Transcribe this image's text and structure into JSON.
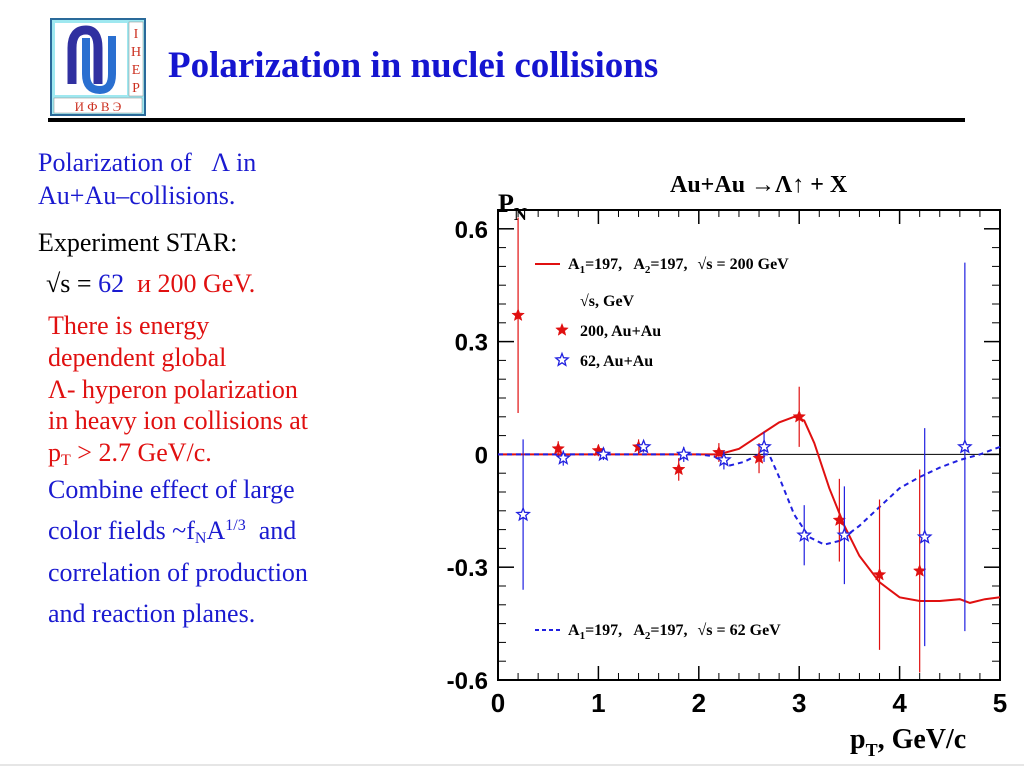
{
  "header": {
    "title": "Polarization in nuclei collisions",
    "logo": {
      "letters_vertical": [
        "I",
        "H",
        "E",
        "P"
      ],
      "letters_bottom": "И Ф В Э"
    }
  },
  "left_text": {
    "line1_prefix": "Polarization of",
    "line1_lambda": "Λ",
    "line1_suffix": "in",
    "line2": "Au+Au–collisions.",
    "experiment": "Experiment STAR:",
    "energy_prefix": "√s =",
    "energy_62": "62",
    "energy_and": "и 200 GeV.",
    "red_1": "There is energy",
    "red_2": "dependent global",
    "red_3": "Λ- hyperon polarization",
    "red_4": "in heavy ion collisions at",
    "red_5_p": "p",
    "red_5_sub": "T",
    "red_5_rest": " > 2.7 GeV/c.",
    "blue_1": "Combine effect of large",
    "blue_2_pre": "color fields ~f",
    "blue_2_sub": "N",
    "blue_2_A": "A",
    "blue_2_sup": "1/3",
    "blue_2_post": "  and",
    "blue_3": "correlation of production",
    "blue_4": "and reaction planes."
  },
  "chart_data": {
    "type": "scatter",
    "title": "Au+Au →Λ↑ + X",
    "ylabel_main": "P",
    "ylabel_sub": "N",
    "xlabel_main": "p",
    "xlabel_sub": "T",
    "xlabel_rest": ", GeV/c",
    "xlim": [
      0,
      5
    ],
    "ylim": [
      -0.6,
      0.65
    ],
    "xticks": [
      0,
      1,
      2,
      3,
      4,
      5
    ],
    "xtick_labels": [
      "0",
      "1",
      "2",
      "3",
      "4",
      "5"
    ],
    "yticks": [
      0.6,
      0.3,
      0,
      -0.3,
      -0.6
    ],
    "ytick_labels": [
      "0.6",
      "0.3",
      "0",
      "-0.3",
      "-0.6"
    ],
    "zero_line": true,
    "colors": {
      "red": "#e01010",
      "blue": "#2020e0"
    },
    "legend": {
      "curve_200": {
        "A1": "A",
        "A1_sub": "1",
        "A1_val": "=197,",
        "A2": "A",
        "A2_sub": "2",
        "A2_val": "=197,",
        "rest": "√s = 200 GeV"
      },
      "header": "√s, GeV",
      "item_200": "200, Au+Au",
      "item_62": "62, Au+Au",
      "curve_62": {
        "A1": "A",
        "A1_sub": "1",
        "A1_val": "=197,",
        "A2": "A",
        "A2_sub": "2",
        "A2_val": "=197,",
        "rest": "√s = 62 GeV"
      }
    },
    "series": [
      {
        "name": "200, Au+Au",
        "marker": "filled-star",
        "color": "#e01010",
        "points": [
          {
            "x": 0.2,
            "y": 0.37,
            "err": 0.26
          },
          {
            "x": 0.6,
            "y": 0.015,
            "err": 0.02
          },
          {
            "x": 1.0,
            "y": 0.01,
            "err": 0.015
          },
          {
            "x": 1.4,
            "y": 0.02,
            "err": 0.02
          },
          {
            "x": 1.8,
            "y": -0.04,
            "err": 0.03
          },
          {
            "x": 2.2,
            "y": 0.005,
            "err": 0.025
          },
          {
            "x": 2.6,
            "y": -0.01,
            "err": 0.04
          },
          {
            "x": 3.0,
            "y": 0.1,
            "err": 0.08
          },
          {
            "x": 3.4,
            "y": -0.175,
            "err": 0.11
          },
          {
            "x": 3.8,
            "y": -0.32,
            "err": 0.2
          },
          {
            "x": 4.2,
            "y": -0.31,
            "err": 0.27
          }
        ]
      },
      {
        "name": "62, Au+Au",
        "marker": "open-star",
        "color": "#2020e0",
        "points": [
          {
            "x": 0.25,
            "y": -0.16,
            "err": 0.2
          },
          {
            "x": 0.65,
            "y": -0.01,
            "err": 0.02
          },
          {
            "x": 1.05,
            "y": 0.0,
            "err": 0.015
          },
          {
            "x": 1.45,
            "y": 0.02,
            "err": 0.015
          },
          {
            "x": 1.85,
            "y": 0.0,
            "err": 0.02
          },
          {
            "x": 2.25,
            "y": -0.015,
            "err": 0.025
          },
          {
            "x": 2.65,
            "y": 0.02,
            "err": 0.04
          },
          {
            "x": 3.05,
            "y": -0.215,
            "err": 0.08
          },
          {
            "x": 3.45,
            "y": -0.215,
            "err": 0.13
          },
          {
            "x": 4.25,
            "y": -0.22,
            "err": 0.29
          },
          {
            "x": 4.65,
            "y": 0.02,
            "err": 0.49
          }
        ]
      }
    ],
    "curves": [
      {
        "name": "√s = 200 GeV",
        "style": "solid",
        "color": "#e01010",
        "points": [
          [
            0,
            0
          ],
          [
            1,
            0
          ],
          [
            2,
            0
          ],
          [
            2.2,
            0.0
          ],
          [
            2.4,
            0.015
          ],
          [
            2.6,
            0.05
          ],
          [
            2.8,
            0.085
          ],
          [
            2.95,
            0.1
          ],
          [
            3.05,
            0.09
          ],
          [
            3.15,
            0.03
          ],
          [
            3.3,
            -0.09
          ],
          [
            3.45,
            -0.19
          ],
          [
            3.6,
            -0.27
          ],
          [
            3.8,
            -0.34
          ],
          [
            4.0,
            -0.38
          ],
          [
            4.2,
            -0.39
          ],
          [
            4.4,
            -0.39
          ],
          [
            4.6,
            -0.385
          ],
          [
            4.7,
            -0.395
          ],
          [
            4.85,
            -0.385
          ],
          [
            5.0,
            -0.38
          ]
        ]
      },
      {
        "name": "√s = 62 GeV",
        "style": "dashed",
        "color": "#2020e0",
        "points": [
          [
            0,
            0
          ],
          [
            1,
            0
          ],
          [
            2,
            0
          ],
          [
            2.15,
            -0.005
          ],
          [
            2.3,
            -0.03
          ],
          [
            2.45,
            -0.02
          ],
          [
            2.6,
            0.0
          ],
          [
            2.7,
            0.0
          ],
          [
            2.8,
            -0.06
          ],
          [
            2.95,
            -0.16
          ],
          [
            3.1,
            -0.22
          ],
          [
            3.25,
            -0.24
          ],
          [
            3.4,
            -0.23
          ],
          [
            3.6,
            -0.19
          ],
          [
            3.8,
            -0.14
          ],
          [
            4.0,
            -0.09
          ],
          [
            4.2,
            -0.06
          ],
          [
            4.4,
            -0.035
          ],
          [
            4.6,
            -0.015
          ],
          [
            4.8,
            0.0
          ],
          [
            5.0,
            0.02
          ]
        ]
      }
    ]
  }
}
